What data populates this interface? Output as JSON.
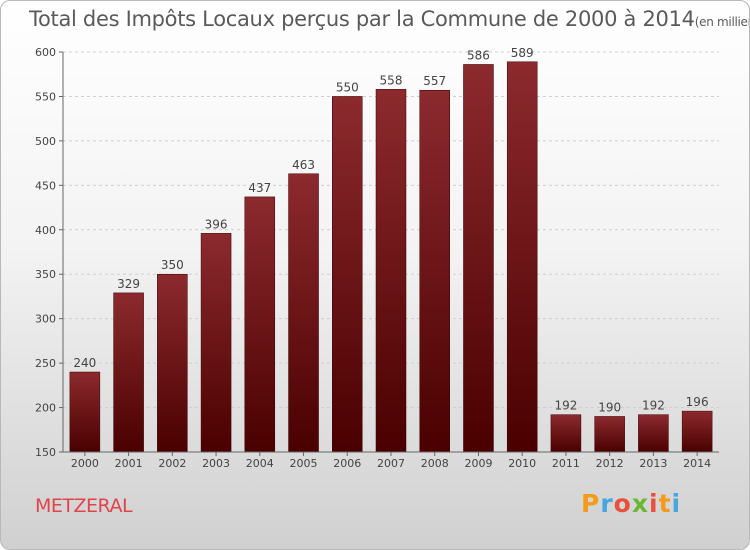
{
  "title": "Total des Impôts Locaux perçus par la Commune de 2000 à 2014",
  "unit": "(en milliers d'€)",
  "commune": "METZERAL",
  "logo": {
    "letters": [
      "P",
      "r",
      "o",
      "x",
      "i",
      "t",
      "i"
    ],
    "colors": [
      "#f39c1a",
      "#45a7de",
      "#e94f3b",
      "#6bb637",
      "#e94f3b",
      "#f39c1a",
      "#45a7de"
    ]
  },
  "chart_data": {
    "type": "bar",
    "categories": [
      "2000",
      "2001",
      "2002",
      "2003",
      "2004",
      "2005",
      "2006",
      "2007",
      "2008",
      "2009",
      "2010",
      "2011",
      "2012",
      "2013",
      "2014"
    ],
    "values": [
      240,
      329,
      350,
      396,
      437,
      463,
      550,
      558,
      557,
      586,
      589,
      192,
      190,
      192,
      196
    ],
    "ylim": [
      150,
      600
    ],
    "yticks": [
      150,
      200,
      250,
      300,
      350,
      400,
      450,
      500,
      550,
      600
    ],
    "grid": true,
    "bar_color": "#7a1e22"
  }
}
